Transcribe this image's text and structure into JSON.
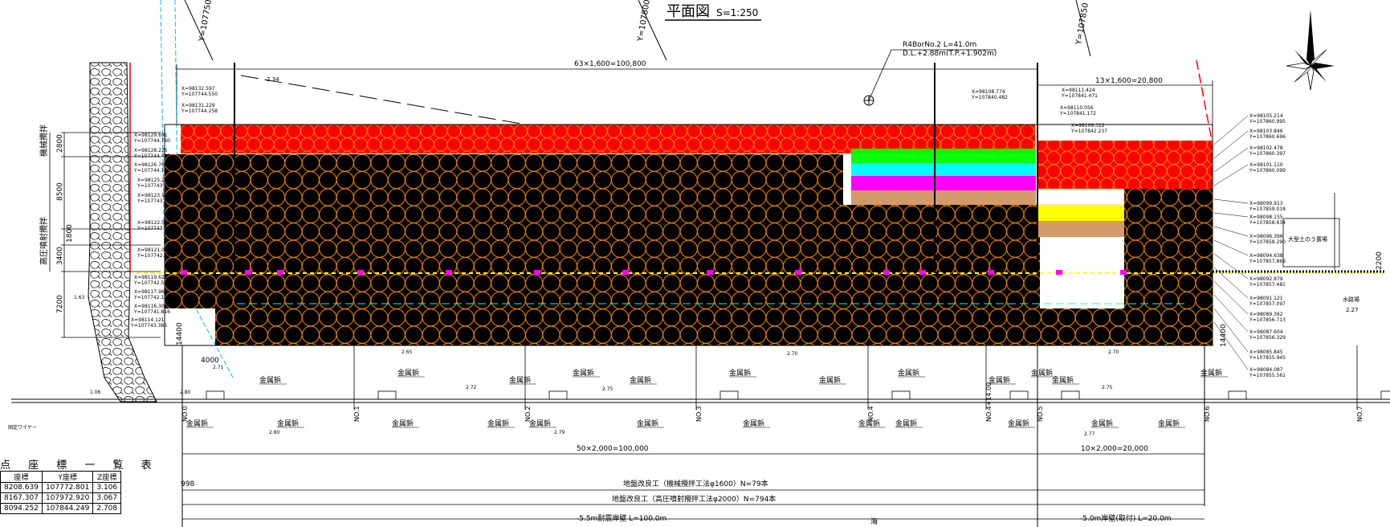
{
  "title": {
    "main": "平面図",
    "scale": "S=1:250"
  },
  "grid_labels": [
    "Y=107750",
    "Y=107800",
    "Y=107850"
  ],
  "borehole": {
    "name": "R4BorNo.2 L=41.0m",
    "level": "D.L.+2.88m(T.P.+1.902m)"
  },
  "top_dims": {
    "main": "63×1,600=100,800",
    "right": "13×1,600=20,800",
    "slope": "2.34"
  },
  "left_dims": {
    "v2800": "2800",
    "v8500": "8500",
    "v1800": "1800",
    "v3400": "3400",
    "v7200": "7200",
    "h4000": "4000",
    "v14400": "14400"
  },
  "left_method_labels": {
    "mech": "機械攪拌",
    "jet": "高圧噴射攪拌"
  },
  "left_coords": [
    "X=98132.597\nY=107744.550",
    "X=98131.229\nY=107744.258",
    "X=98129.691\nY=107744.740",
    "X=98128.225\nY=107744.420",
    "X=98126.760\nY=107744.100",
    "X=98125.294\nY=107743.780",
    "X=98123.927\nY=107743.481",
    "X=98122.559\nY=107743.182",
    "X=98121.093\nY=107742.862",
    "X=98119.628\nY=107742.542",
    "X=98117.967\nY=107742.179",
    "X=98116.306\nY=107741.816",
    "X=98114.121\nY=107743.386"
  ],
  "mid_coords": [
    "X=98108.774\nY=107840.482",
    "X=98111.424\nY=107841.471",
    "X=98110.056\nY=107841.172",
    "X=98109.312\nY=107842.237"
  ],
  "right_coords": [
    "X=98105.214\nY=107860.995",
    "X=98103.846\nY=107860.696",
    "X=98102.478\nY=107860.397",
    "X=98101.110\nY=107860.099",
    "X=98099.913\nY=107859.018",
    "X=98098.155\nY=107858.634",
    "X=98096.396\nY=107858.290",
    "X=98094.638\nY=107857.866",
    "X=98092.879\nY=107857.481",
    "X=98091.121\nY=107857.097",
    "X=98089.362\nY=107856.713",
    "X=98087.604\nY=107856.329",
    "X=98085.845\nY=107855.945",
    "X=98084.087\nY=107855.561"
  ],
  "right_annotations": {
    "box": "大型土のう置場",
    "water": "水路場",
    "v2200": "2200",
    "v14400": "14400",
    "lvl": "2.27"
  },
  "stations": [
    "NO.0",
    "NO.1",
    "NO.2",
    "NO.3",
    "NO.4",
    "NO.4+14.00",
    "NO.5",
    "NO.6",
    "NO.7"
  ],
  "metal_tag_label": "金属鋲",
  "levels": [
    "2.65",
    "2.70",
    "2.70",
    "2.72",
    "2.75",
    "2.75",
    "2.80",
    "2.80",
    "2.79",
    "2.77",
    "2.71",
    "1.63",
    "1.06"
  ],
  "bottom_dims": {
    "main": "50×2,000=100,000",
    "right": "10×2,000=20,000",
    "offset": "998"
  },
  "legend_lines": [
    "地盤改良工（機械攪拌工法φ1600）N=79本",
    "地盤改良工（高圧噴射攪拌工法φ2000）N=794本",
    "-5.5m耐震岸壁 L=100.0m",
    "-5.0m岸壁(取付) L=20.0m"
  ],
  "sea_label": "海",
  "anchor_label": "固定ワイヤー",
  "coord_table": {
    "title": "点 座 標 一 覧 表",
    "headers": [
      "座標",
      "Y座標",
      "Z座標"
    ],
    "rows": [
      [
        "8208.639",
        "107772.801",
        "3.106"
      ],
      [
        "8167.307",
        "107972.920",
        "3.067"
      ],
      [
        "8094.252",
        "107844.249",
        "2.708"
      ]
    ]
  },
  "colors": {
    "background": "#ffffff",
    "line": "#000000",
    "pile_ring": "#ff8a00",
    "fill_red": "#ff0000",
    "fill_black": "#000000",
    "green": "#00ff00",
    "cyan": "#00ffff",
    "magenta": "#ff00ff",
    "tan": "#d49a6a",
    "yellow": "#ffff00"
  }
}
